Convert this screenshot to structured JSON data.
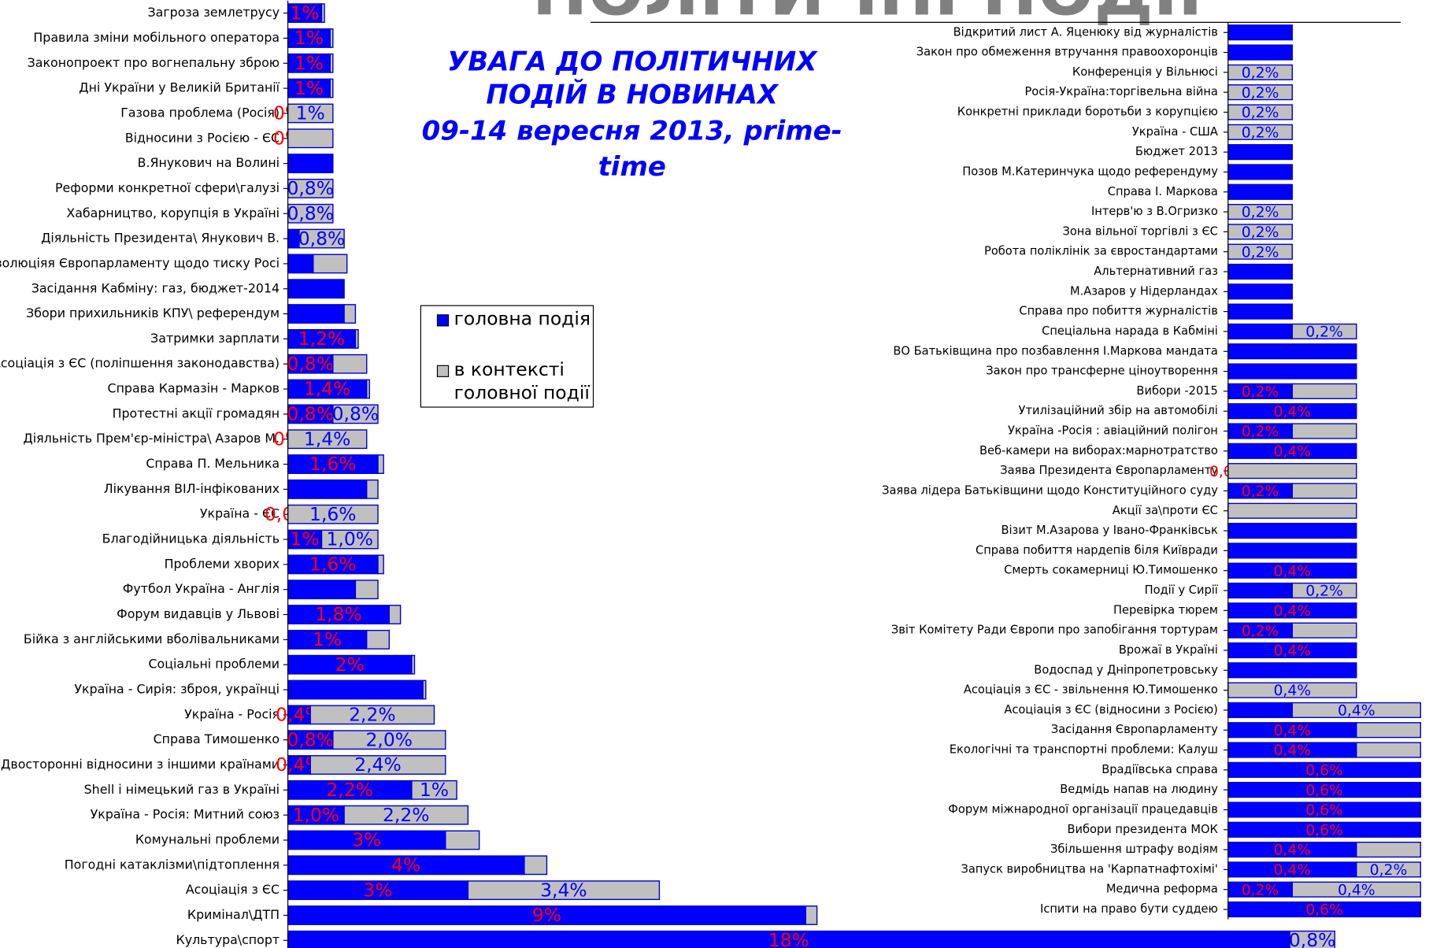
{
  "title": "ПОЛІТИЧНІ ПОДІЇ",
  "subtitle": [
    "УВАГА ДО ПОЛІТИЧНИХ",
    "ПОДІЙ В НОВИНАХ",
    "09-14 вересня 2013,  prime-",
    "time"
  ],
  "chart_data": [
    {
      "type": "bar",
      "orientation": "horizontal",
      "stacked": true,
      "xlim": [
        0,
        20
      ],
      "categories": [
        "Загроза землетрусу",
        "Правила зміни мобільного оператора",
        "Законопроект про вогнепальну зброю",
        "Дні України у Великій Британії",
        "Газова проблема (Росія)",
        "Відносини з Росією - ЄС",
        "В.Янукович на Волині",
        "Реформи конкретної сфери\\галузі",
        "Хабарництво, корупція в Україні",
        "Діяльність Президента\\ Янукович В.",
        "Резолюціяя Європарламенту щодо тиску Росі",
        "Засідання Кабміну: газ, бюджет-2014",
        "Збори прихильників КПУ\\ референдум",
        "Затримки зарплати",
        "Асоціація з ЄС (поліпшення законодавства)",
        "Справа Кармазін - Марков",
        "Протестні акції громадян",
        "Діяльність Прем'єр-міністра\\ Азаров М.",
        "Справа П. Мельника",
        "Лікування ВІЛ-інфікованих",
        "Україна - ЄС",
        "Благодійницька діяльність",
        "Проблеми хворих",
        "Футбол Україна - Англія",
        "Форум видавців у Львові",
        "Бійка з англійськими вболівальниками",
        "Соціальні проблеми",
        "Україна - Сирія: зброя, українці",
        "Україна - Росія",
        "Справа Тимошенко",
        "Двосторонні відносини з іншими країнами",
        "Shell і німецький газ в Україні",
        "Україна - Росія: Митний союз",
        "Комунальні проблеми",
        "Погодні катаклізми\\підтоплення",
        "Асоціація з ЄС",
        "Кримінал\\ДТП",
        "Культура\\спорт"
      ],
      "series": [
        {
          "name": "головна подія",
          "color": "#0000ff",
          "values": [
            0.6,
            0.75,
            0.75,
            0.75,
            0,
            0,
            0.8,
            0,
            0,
            0.2,
            0.45,
            1.0,
            1.0,
            1.2,
            0.8,
            1.4,
            0.8,
            0,
            1.6,
            1.4,
            0,
            0.6,
            1.6,
            1.2,
            1.8,
            1.4,
            2.2,
            2.4,
            0.4,
            0.8,
            0.4,
            2.2,
            1.0,
            2.8,
            4.2,
            3.2,
            9.2,
            17.8
          ],
          "value_labels": [
            "1%",
            "1%",
            "1%",
            "1%",
            "0%",
            "0%",
            null,
            null,
            null,
            null,
            null,
            null,
            null,
            "1,2%",
            "0,8%",
            "1,4%",
            "0,8%",
            "0%",
            "1,6%",
            null,
            "0,0%",
            "1%",
            "1,6%",
            null,
            "1,8%",
            "1%",
            "2%",
            null,
            "0,4%",
            "0,8%",
            "0,4%",
            "2,2%",
            "1,0%",
            "3%",
            "4%",
            "3%",
            "9%",
            "18%"
          ]
        },
        {
          "name": "в контексті головної події",
          "color": "#c0c0c0",
          "values": [
            0.05,
            0.05,
            0.05,
            0.05,
            0.8,
            0.8,
            0,
            0.8,
            0.8,
            0.8,
            0.6,
            0,
            0.2,
            0.05,
            0.6,
            0.05,
            0.8,
            1.4,
            0.1,
            0.2,
            1.6,
            1.0,
            0.1,
            0.4,
            0.2,
            0.4,
            0.05,
            0.05,
            2.2,
            2.0,
            2.4,
            0.8,
            2.2,
            0.6,
            0.4,
            3.4,
            0.2,
            0.8
          ],
          "value_labels": [
            null,
            null,
            null,
            null,
            "1%",
            null,
            null,
            "0,8%",
            "0,8%",
            "0,8%",
            null,
            null,
            null,
            null,
            null,
            null,
            "0,8%",
            "1,4%",
            null,
            null,
            "1,6%",
            "1,0%",
            null,
            null,
            null,
            null,
            null,
            null,
            "2,2%",
            "2,0%",
            "2,4%",
            "1%",
            "2,2%",
            null,
            null,
            "3,4%",
            null,
            "0,8%"
          ]
        }
      ]
    },
    {
      "type": "bar",
      "orientation": "horizontal",
      "stacked": true,
      "xlim": [
        0,
        0.65
      ],
      "categories": [
        "Відкритий лист А. Яценюку від журналістів",
        "Закон про обмеження втручання правоохоронців",
        "Конференція у Вільнюсі",
        "Росія-Україна:торгівельна війна",
        "Конкретні приклади боротьби з корупцією",
        "Україна - США",
        "Бюджет 2013",
        "Позов М.Катеринчука щодо референдуму",
        "Справа І. Маркова",
        "Інтерв'ю з В.Огризко",
        "Зона вільної торгівлі з ЄС",
        "Робота поліклінік за євростандартами",
        "Альтернативний газ",
        "М.Азаров у Нідерландах",
        "Справа про побиття журналістів",
        "Спеціальна нарада в Кабміні",
        "ВО Батьківщина про позбавлення І.Маркова мандата",
        "Закон про трансферне ціноутворення",
        "Вибори -2015",
        "Утилізаційний збір на автомобілі",
        "Україна -Росія : авіаційний полігон",
        "Веб-камери на виборах:марнотратство",
        "Заява Президента Європарламенту",
        "Заява лідера Батьківщини щодо Конституційного суду",
        "Акції за\\проти ЄС",
        "Візит М.Азарова у Івано-Франківськ",
        "Справа побиття нардепів біля Київради",
        "Смерть сокамерниці Ю.Тимошенко",
        "Події у Сирії",
        "Перевірка тюрем",
        "Звіт Комітету Ради Європи про запобігання тортурам",
        "Врожаї в Україні",
        "Водоспад у Дніпропетровську",
        "Асоціація з ЄС - звільнення Ю.Тимошенко",
        "Асоціація з ЄС (відносини з Росією)",
        "Засідання Європарламенту",
        "Екологічні та транспортні проблеми: Калуш",
        "Врадіївська справа",
        "Ведмідь напав на людину",
        "Форум міжнародної організації працедавців",
        "Вибори президента МОК",
        "Збільшення штрафу водіям",
        "Запуск виробництва на 'Карпатнафтохімі'",
        "Медична реформа",
        "Іспити на право бути суддею"
      ],
      "series": [
        {
          "color": "#0000ff",
          "values": [
            0.2,
            0.2,
            0,
            0,
            0,
            0,
            0.2,
            0.2,
            0.2,
            0,
            0,
            0,
            0.2,
            0.2,
            0.2,
            0.2,
            0.4,
            0.4,
            0.2,
            0.4,
            0.2,
            0.4,
            0,
            0.2,
            0,
            0.4,
            0.4,
            0.4,
            0.2,
            0.4,
            0.2,
            0.4,
            0.4,
            0,
            0.2,
            0.4,
            0.4,
            0.6,
            0.6,
            0.6,
            0.6,
            0.4,
            0.4,
            0.2,
            0.6
          ],
          "value_labels": [
            null,
            null,
            null,
            null,
            null,
            null,
            null,
            null,
            null,
            null,
            null,
            null,
            null,
            null,
            null,
            null,
            null,
            null,
            "0,2%",
            "0,4%",
            "0,2%",
            "0,4%",
            "0,0%",
            "0,2%",
            null,
            null,
            null,
            "0,4%",
            null,
            "0,4%",
            "0,2%",
            "0,4%",
            null,
            null,
            null,
            "0,4%",
            "0,4%",
            "0,6%",
            "0,6%",
            "0,6%",
            "0,6%",
            "0,4%",
            "0,4%",
            "0,2%",
            "0,6%"
          ]
        },
        {
          "color": "#c0c0c0",
          "values": [
            0,
            0,
            0.2,
            0.2,
            0.2,
            0.2,
            0,
            0,
            0,
            0.2,
            0.2,
            0.2,
            0,
            0,
            0,
            0.2,
            0,
            0,
            0.2,
            0,
            0.2,
            0,
            0.4,
            0.2,
            0.4,
            0,
            0,
            0,
            0.2,
            0,
            0.2,
            0,
            0,
            0.4,
            0.4,
            0.2,
            0.2,
            0,
            0,
            0,
            0,
            0.2,
            0.2,
            0.4,
            0
          ],
          "value_labels": [
            null,
            null,
            "0,2%",
            "0,2%",
            "0,2%",
            "0,2%",
            null,
            null,
            null,
            "0,2%",
            "0,2%",
            "0,2%",
            null,
            null,
            null,
            "0,2%",
            null,
            null,
            null,
            null,
            null,
            null,
            null,
            null,
            null,
            null,
            null,
            null,
            "0,2%",
            null,
            null,
            null,
            null,
            "0,4%",
            "0,4%",
            null,
            null,
            null,
            null,
            null,
            null,
            null,
            "0,2%",
            "0,4%",
            null
          ]
        }
      ]
    }
  ]
}
